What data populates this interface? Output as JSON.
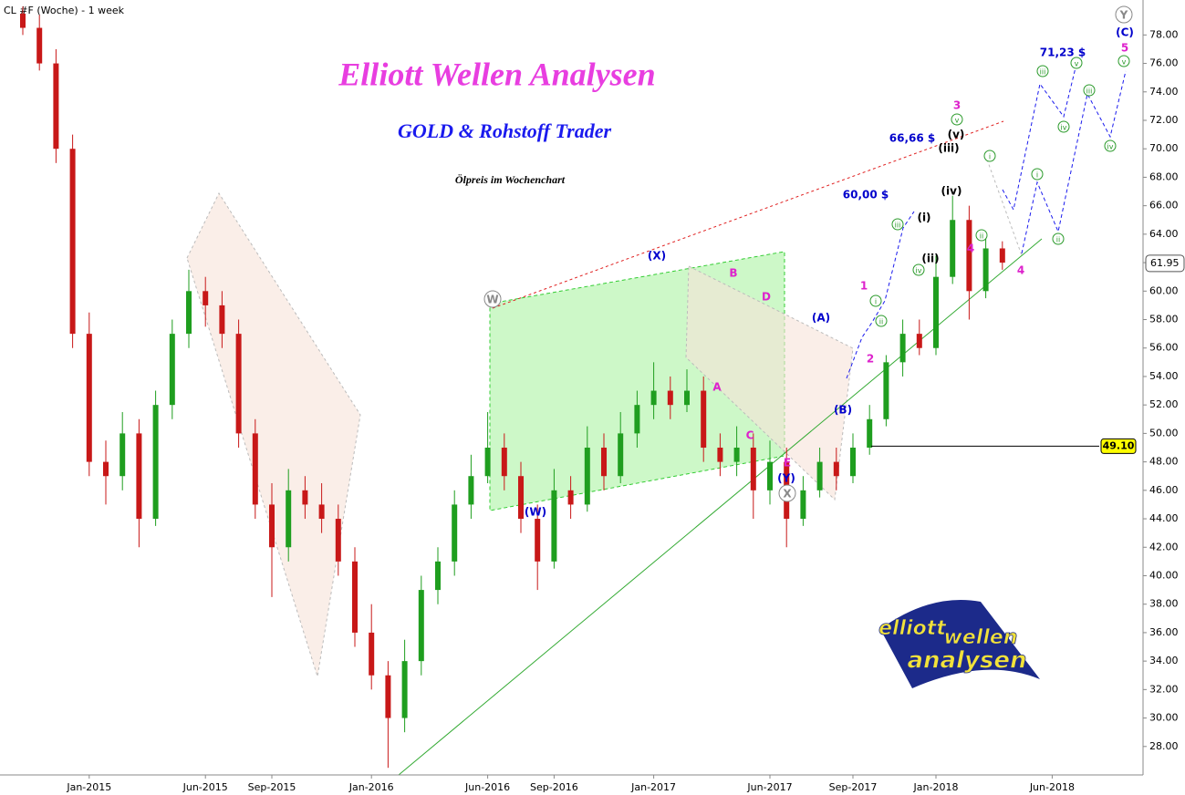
{
  "chart_data": {
    "type": "candlestick",
    "title": "Elliott Wellen Analysen",
    "subtitle": "GOLD & Rohstoff Trader",
    "caption": "Ölpreis im Wochenchart",
    "symbol": "CL #F (Woche) - 1 week",
    "categories": [
      null,
      null,
      null,
      null,
      "Jan-2015",
      null,
      null,
      null,
      null,
      null,
      null,
      "Jun-2015",
      null,
      null,
      null,
      "Sep-2015",
      null,
      null,
      null,
      null,
      null,
      "Jan-2016",
      null,
      null,
      null,
      null,
      null,
      null,
      "Jun-2016",
      null,
      null,
      null,
      "Sep-2016",
      null,
      null,
      null,
      null,
      null,
      "Jan-2017",
      null,
      null,
      null,
      null,
      null,
      null,
      "Jun-2017",
      null,
      null,
      null,
      null,
      "Sep-2017",
      null,
      null,
      null,
      null,
      "Jan-2018",
      null,
      null,
      null,
      null,
      null,
      null,
      "Jun-2018",
      null,
      null,
      null,
      null,
      null
    ],
    "open": [
      79.5,
      78.5,
      76,
      70,
      57,
      48,
      47,
      50,
      44,
      52,
      57,
      60,
      59,
      57,
      50,
      45,
      42,
      46,
      45,
      44,
      41,
      36,
      33,
      30,
      34,
      39,
      41,
      45,
      47,
      49,
      47,
      44,
      41,
      46,
      45,
      49,
      47,
      50,
      52,
      53,
      52,
      53,
      49,
      48,
      49,
      46,
      48,
      44,
      46,
      48,
      47,
      49,
      51,
      55,
      57,
      56,
      61,
      65,
      60,
      63,
      null,
      null,
      null,
      null,
      null,
      null,
      null,
      null
    ],
    "high": [
      80,
      79.4,
      77,
      71,
      58.5,
      49.5,
      51.5,
      51,
      53,
      58,
      61.5,
      61,
      60,
      58,
      51,
      46.5,
      47.5,
      47,
      46.5,
      45,
      42,
      38,
      34,
      35.5,
      40,
      42,
      46,
      48.5,
      51.5,
      50,
      48,
      45,
      47.5,
      47,
      50.5,
      50,
      51.5,
      53,
      55,
      54,
      54.5,
      54,
      50,
      50.5,
      50,
      49.5,
      49,
      47,
      49,
      49,
      50,
      52,
      55.5,
      58,
      58,
      62.5,
      66.7,
      66,
      64,
      63.5,
      null,
      null,
      null,
      null,
      null,
      null,
      null,
      null
    ],
    "low": [
      78,
      75.5,
      69,
      56,
      47,
      45,
      46,
      42,
      43.5,
      51,
      56,
      57.5,
      56,
      49,
      44,
      38.5,
      41,
      44,
      43,
      40,
      35,
      32,
      26.5,
      29,
      33,
      38,
      40,
      44,
      46.5,
      46,
      43,
      39,
      40.5,
      44,
      44.5,
      46,
      46.5,
      49,
      51,
      51,
      51.5,
      48,
      47,
      47,
      44,
      45,
      42,
      43.5,
      45.5,
      46,
      46.5,
      48.5,
      50.5,
      54,
      55.5,
      55.5,
      60.5,
      58,
      59.5,
      61.5,
      null,
      null,
      null,
      null,
      null,
      null,
      null,
      null
    ],
    "close": [
      78.5,
      76,
      70,
      57,
      48,
      47,
      50,
      44,
      52,
      57,
      60,
      59,
      57,
      50,
      45,
      42,
      46,
      45,
      44,
      41,
      36,
      33,
      30,
      34,
      39,
      41,
      45,
      47,
      49,
      47,
      44,
      41,
      46,
      45,
      49,
      47,
      50,
      52,
      53,
      52,
      53,
      49,
      48,
      49,
      46,
      48,
      44,
      46,
      48,
      47,
      49,
      51,
      55,
      57,
      56,
      61,
      65,
      60,
      63,
      62,
      null,
      null,
      null,
      null,
      null,
      null,
      null,
      null
    ],
    "up_color": "#1f9e1f",
    "down_color": "#c81818",
    "ylim": [
      26,
      80.2
    ],
    "yticks": [
      {
        "value": 28,
        "label": "28.00"
      },
      {
        "value": 30,
        "label": "30.00"
      },
      {
        "value": 32,
        "label": "32.00"
      },
      {
        "value": 34,
        "label": "34.00"
      },
      {
        "value": 36,
        "label": "36.00"
      },
      {
        "value": 38,
        "label": "38.00"
      },
      {
        "value": 40,
        "label": "40.00"
      },
      {
        "value": 42,
        "label": "42.00"
      },
      {
        "value": 44,
        "label": "44.00"
      },
      {
        "value": 46,
        "label": "46.00"
      },
      {
        "value": 48,
        "label": "48.00"
      },
      {
        "value": 50,
        "label": "50.00"
      },
      {
        "value": 52,
        "label": "52.00"
      },
      {
        "value": 54,
        "label": "54.00"
      },
      {
        "value": 56,
        "label": "56.00"
      },
      {
        "value": 58,
        "label": "58.00"
      },
      {
        "value": 60,
        "label": "60.00"
      },
      {
        "value": 62,
        "label": "62.00"
      },
      {
        "value": 64,
        "label": "64.00"
      },
      {
        "value": 66,
        "label": "66.00"
      },
      {
        "value": 68,
        "label": "68.00"
      },
      {
        "value": 70,
        "label": "70.00"
      },
      {
        "value": 72,
        "label": "72.00"
      },
      {
        "value": 74,
        "label": "74.00"
      },
      {
        "value": 76,
        "label": "76.00"
      },
      {
        "value": 78,
        "label": "78.00"
      }
    ],
    "last_price": {
      "value": 61.95,
      "label": "61.95"
    },
    "price_line": {
      "value": 49.1,
      "label": "49.10"
    },
    "annotations": [
      {
        "text": "W",
        "color": "#888",
        "circled": true
      },
      {
        "text": "(X)",
        "color": "#0000cc"
      },
      {
        "text": "B",
        "color": "#dd22cc"
      },
      {
        "text": "D",
        "color": "#dd22cc"
      },
      {
        "text": "A",
        "color": "#dd22cc"
      },
      {
        "text": "C",
        "color": "#dd22cc"
      },
      {
        "text": "E",
        "color": "#dd22cc"
      },
      {
        "text": "(Y)",
        "color": "#0000cc"
      },
      {
        "text": "X",
        "color": "#888",
        "circled": true
      },
      {
        "text": "(W)",
        "color": "#0000cc"
      },
      {
        "text": "(A)",
        "color": "#0000cc"
      },
      {
        "text": "(B)",
        "color": "#0000cc"
      },
      {
        "text": "1",
        "color": "#dd22cc"
      },
      {
        "text": "2",
        "color": "#dd22cc"
      },
      {
        "text": "3",
        "color": "#dd22cc"
      },
      {
        "text": "4",
        "color": "#dd22cc"
      },
      {
        "text": "4",
        "color": "#dd22cc"
      },
      {
        "text": "5",
        "color": "#dd22cc"
      },
      {
        "text": "(C)",
        "color": "#0000cc"
      },
      {
        "text": "Y",
        "color": "#888",
        "circled": true
      },
      {
        "text": "66,66 $",
        "color": "#0000cc"
      },
      {
        "text": "60,00 $",
        "color": "#0000cc"
      },
      {
        "text": "71,23 $",
        "color": "#0000cc"
      },
      {
        "text": "(v)",
        "color": "#000"
      },
      {
        "text": "(iii)",
        "color": "#000"
      },
      {
        "text": "(iv)",
        "color": "#000"
      },
      {
        "text": "(i)",
        "color": "#000"
      },
      {
        "text": "(ii)",
        "color": "#000"
      },
      {
        "text": "iii",
        "color": "#2a9a2a",
        "circled": true
      },
      {
        "text": "iv",
        "color": "#2a9a2a",
        "circled": true
      },
      {
        "text": "i",
        "color": "#2a9a2a",
        "circled": true
      },
      {
        "text": "ii",
        "color": "#2a9a2a",
        "circled": true
      },
      {
        "text": "v",
        "color": "#2a9a2a",
        "circled": true
      },
      {
        "text": "i",
        "color": "#2a9a2a",
        "circled": true
      },
      {
        "text": "ii",
        "color": "#2a9a2a",
        "circled": true
      },
      {
        "text": "iii",
        "color": "#2a9a2a",
        "circled": true
      },
      {
        "text": "iv",
        "color": "#2a9a2a",
        "circled": true
      },
      {
        "text": "v",
        "color": "#2a9a2a",
        "circled": true
      },
      {
        "text": "i",
        "color": "#2a9a2a",
        "circled": true
      },
      {
        "text": "ii",
        "color": "#2a9a2a",
        "circled": true
      },
      {
        "text": "iii",
        "color": "#2a9a2a",
        "circled": true
      },
      {
        "text": "iv",
        "color": "#2a9a2a",
        "circled": true
      },
      {
        "text": "v",
        "color": "#2a9a2a",
        "circled": true
      }
    ],
    "logo": [
      "elliott",
      "wellen",
      "analysen"
    ]
  }
}
